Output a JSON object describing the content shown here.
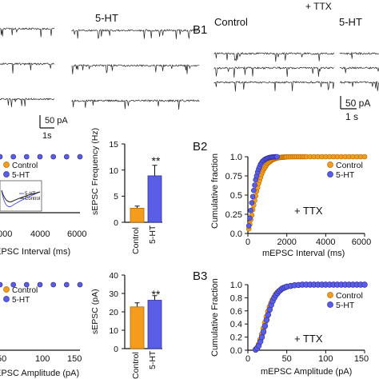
{
  "panel_labels": {
    "b1": "B1",
    "b2": "B2",
    "b3": "B3"
  },
  "traces": {
    "left_condition": "5-HT",
    "right_header": "+ TTX",
    "right_control": "Control",
    "right_condition": "5-HT",
    "left_scale": {
      "amp": "50 pA",
      "time": "1s"
    },
    "right_scale": {
      "amp": "50 pA",
      "time": "1 s"
    }
  },
  "colors": {
    "control": "#f39c1e",
    "serotonin": "#5a5ee6",
    "control_edge": "#b56a00",
    "serotonin_edge": "#2c2f9e"
  },
  "chart_data": [
    {
      "id": "a2-cumulative-interval",
      "type": "scatter",
      "xlabel": "EPSC Interval (ms)",
      "xticks": [
        "000",
        "4000",
        "6000"
      ],
      "xlim": [
        0,
        6000
      ],
      "legend": [
        "Control",
        "5-HT"
      ],
      "inset_legend": [
        "5-HT",
        "Control"
      ],
      "series": [
        {
          "name": "Control",
          "x": [
            0,
            1000,
            2000,
            3000,
            4000,
            5000,
            6000
          ],
          "y": [
            1,
            1,
            1,
            1,
            1,
            1,
            1
          ]
        },
        {
          "name": "5-HT",
          "x": [
            0,
            1000,
            2000,
            3000,
            4000,
            5000,
            6000
          ],
          "y": [
            1,
            1,
            1,
            1,
            1,
            1,
            1
          ]
        }
      ]
    },
    {
      "id": "a2-frequency-bar",
      "type": "bar",
      "ylabel": "sEPSC Frequency (Hz)",
      "ylim": [
        0,
        15
      ],
      "yticks": [
        "0",
        "5",
        "10",
        "15"
      ],
      "categories": [
        "Control",
        "5-HT"
      ],
      "values": [
        2.7,
        8.9
      ],
      "errors": [
        0.4,
        2.0
      ],
      "significance": "**"
    },
    {
      "id": "b2-cumulative-interval",
      "type": "scatter",
      "xlabel": "mEPSC Interval (ms)",
      "ylabel": "Cumulative fraction",
      "xlim": [
        0,
        6000
      ],
      "ylim": [
        0,
        1.0
      ],
      "xticks": [
        "0",
        "2000",
        "4000",
        "6000"
      ],
      "yticks": [
        "0.0",
        "0.25",
        "0.5",
        "0.75",
        "1.0"
      ],
      "legend": [
        "Control",
        "5-HT"
      ],
      "annotation": "+ TTX",
      "series": [
        {
          "name": "Control",
          "x": [
            50,
            100,
            150,
            200,
            250,
            300,
            350,
            400,
            450,
            500,
            550,
            600,
            650,
            700,
            750,
            800,
            850,
            900,
            950,
            1000,
            1050,
            1100,
            1150,
            1200,
            1250,
            1300,
            1350,
            1400,
            1450,
            1500,
            1550,
            1600,
            1650,
            1700,
            1750,
            1800,
            1850,
            1900,
            1950,
            2000,
            2100,
            2200,
            2300,
            2400,
            2500,
            2600,
            2700,
            2800,
            2900,
            3000,
            3200,
            3400,
            3600,
            3800,
            4000,
            4200,
            4400,
            4600,
            4800,
            5000,
            5200,
            5400,
            5600,
            5800,
            6000
          ],
          "y": [
            0.06,
            0.12,
            0.18,
            0.24,
            0.31,
            0.37,
            0.43,
            0.49,
            0.55,
            0.6,
            0.65,
            0.69,
            0.73,
            0.77,
            0.8,
            0.83,
            0.85,
            0.87,
            0.89,
            0.91,
            0.92,
            0.93,
            0.94,
            0.95,
            0.96,
            0.965,
            0.97,
            0.975,
            0.98,
            0.983,
            0.986,
            0.988,
            0.99,
            0.992,
            0.993,
            0.994,
            0.995,
            0.996,
            0.997,
            0.998,
            0.998,
            0.999,
            0.999,
            1,
            1,
            1,
            1,
            1,
            1,
            1,
            1,
            1,
            1,
            1,
            1,
            1,
            1,
            1,
            1,
            1,
            1,
            1,
            1,
            1,
            1
          ]
        },
        {
          "name": "5-HT",
          "x": [
            50,
            100,
            150,
            200,
            250,
            300,
            350,
            400,
            450,
            500,
            550,
            600,
            650,
            700,
            750,
            800,
            850,
            900,
            950,
            1000,
            1050,
            1100,
            1150,
            1200,
            1250,
            1300,
            1350,
            1400,
            1450,
            1500
          ],
          "y": [
            0.1,
            0.2,
            0.3,
            0.4,
            0.48,
            0.56,
            0.63,
            0.7,
            0.75,
            0.8,
            0.84,
            0.87,
            0.9,
            0.92,
            0.94,
            0.95,
            0.96,
            0.97,
            0.975,
            0.98,
            0.985,
            0.99,
            0.992,
            0.994,
            0.996,
            0.997,
            0.998,
            0.999,
            1,
            1
          ]
        }
      ]
    },
    {
      "id": "a3-cumulative-amplitude",
      "type": "scatter",
      "xlabel": "EPSC Amplitude (pA)",
      "xticks": [
        "50",
        "100",
        "150"
      ],
      "xlim": [
        0,
        150
      ],
      "legend": [
        "Control",
        "5-HT"
      ],
      "series": [
        {
          "name": "Control",
          "x": [
            0,
            25,
            50,
            75,
            100,
            125,
            150
          ],
          "y": [
            1,
            1,
            1,
            1,
            1,
            1,
            1
          ]
        },
        {
          "name": "5-HT",
          "x": [
            0,
            25,
            50,
            75,
            100,
            125,
            150
          ],
          "y": [
            1,
            1,
            1,
            1,
            1,
            1,
            1
          ]
        }
      ]
    },
    {
      "id": "a3-amplitude-bar",
      "type": "bar",
      "ylabel": "sEPSC (pA)",
      "ylim": [
        0,
        40
      ],
      "yticks": [
        "0",
        "10",
        "20",
        "30",
        "40"
      ],
      "categories": [
        "Control",
        "5-HT"
      ],
      "values": [
        22.7,
        26.3
      ],
      "errors": [
        2.2,
        2.5
      ],
      "significance": "**"
    },
    {
      "id": "b3-cumulative-amplitude",
      "type": "scatter",
      "xlabel": "mEPSC Amplitude (pA)",
      "ylabel": "Cumulative Fraction",
      "xlim": [
        0,
        150
      ],
      "ylim": [
        0,
        1.0
      ],
      "xticks": [
        "0",
        "50",
        "100",
        "150"
      ],
      "yticks": [
        "0.0",
        "0.2",
        "0.4",
        "0.6",
        "0.8",
        "1.0"
      ],
      "legend": [
        "Control",
        "5-HT"
      ],
      "annotation": "+ TTX",
      "series": [
        {
          "name": "Control",
          "x": [
            10,
            12,
            14,
            16,
            18,
            20,
            22,
            24,
            26,
            28,
            30,
            32,
            34,
            36,
            38,
            40,
            42,
            44,
            46,
            48,
            50,
            55,
            60,
            65,
            70,
            75,
            80,
            85,
            90,
            95,
            100,
            105,
            110,
            115,
            120,
            125,
            130,
            135,
            140,
            145,
            150
          ],
          "y": [
            0.01,
            0.04,
            0.09,
            0.16,
            0.24,
            0.33,
            0.42,
            0.51,
            0.59,
            0.66,
            0.72,
            0.77,
            0.81,
            0.85,
            0.88,
            0.9,
            0.92,
            0.94,
            0.95,
            0.96,
            0.97,
            0.98,
            0.99,
            0.995,
            1,
            1,
            1,
            1,
            1,
            1,
            1,
            1,
            1,
            1,
            1,
            1,
            1,
            1,
            1,
            1,
            1
          ]
        },
        {
          "name": "5-HT",
          "x": [
            10,
            12,
            14,
            16,
            18,
            20,
            22,
            24,
            26,
            28,
            30,
            32,
            34,
            36,
            38,
            40,
            42,
            44,
            46,
            48,
            50,
            55,
            60,
            65,
            70,
            75,
            80,
            85,
            90,
            95,
            100,
            105,
            110,
            115,
            120,
            125,
            130,
            135,
            140,
            145,
            150
          ],
          "y": [
            0.01,
            0.03,
            0.07,
            0.13,
            0.2,
            0.28,
            0.37,
            0.46,
            0.54,
            0.62,
            0.69,
            0.75,
            0.8,
            0.84,
            0.87,
            0.9,
            0.92,
            0.94,
            0.95,
            0.96,
            0.97,
            0.98,
            0.99,
            0.995,
            1,
            1,
            1,
            1,
            1,
            1,
            1,
            1,
            1,
            1,
            1,
            1,
            1,
            1,
            1,
            1,
            1
          ]
        }
      ]
    }
  ]
}
